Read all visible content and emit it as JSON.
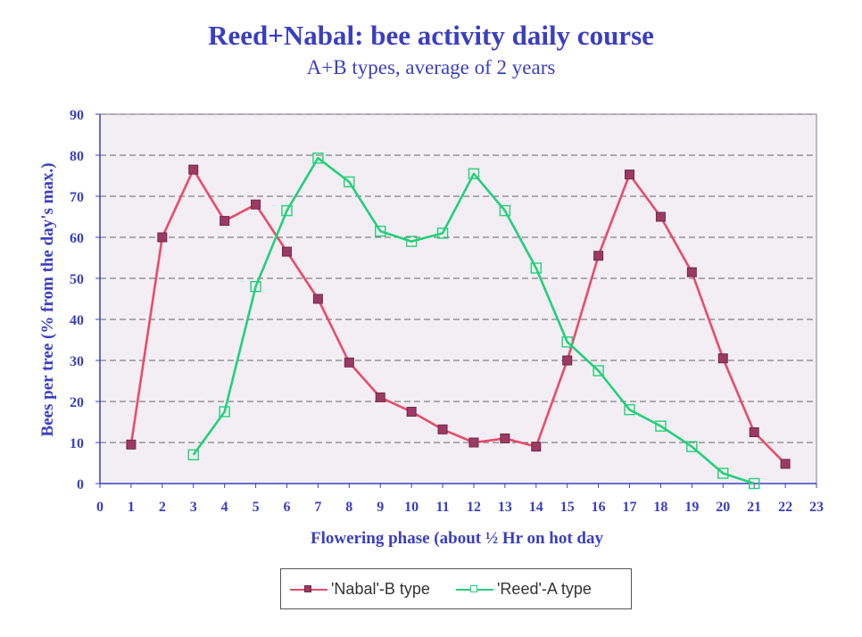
{
  "chart_data": {
    "type": "line",
    "title": "Reed+Nabal: bee activity daily course",
    "subtitle": "A+B types, average of 2 years",
    "xlabel": "Flowering phase (about ½ Hr on hot day",
    "ylabel": "Bees per tree (% from the day's max.)",
    "xlim": [
      0,
      23
    ],
    "ylim": [
      0,
      90
    ],
    "x_ticks": [
      0,
      1,
      2,
      3,
      4,
      5,
      6,
      7,
      8,
      9,
      10,
      11,
      12,
      13,
      14,
      15,
      16,
      17,
      18,
      19,
      20,
      21,
      22,
      23
    ],
    "y_ticks": [
      0,
      10,
      20,
      30,
      40,
      50,
      60,
      70,
      80,
      90
    ],
    "grid": true,
    "legend_position": "bottom",
    "series": [
      {
        "name": "'Nabal'-B type",
        "color": "#e84c6a",
        "marker": "filled-square",
        "marker_color": "#9c3a64",
        "points": [
          [
            1,
            9.5
          ],
          [
            2,
            60
          ],
          [
            3,
            76.5
          ],
          [
            4,
            64
          ],
          [
            5,
            68
          ],
          [
            6,
            56.5
          ],
          [
            7,
            45
          ],
          [
            8,
            29.5
          ],
          [
            9,
            21
          ],
          [
            10,
            17.5
          ],
          [
            11,
            13.2
          ],
          [
            12,
            10
          ],
          [
            13,
            11
          ],
          [
            14,
            9
          ],
          [
            15,
            30
          ],
          [
            16,
            55.5
          ],
          [
            17,
            75.3
          ],
          [
            18,
            65
          ],
          [
            19,
            51.5
          ],
          [
            20,
            30.5
          ],
          [
            21,
            12.5
          ],
          [
            22,
            4.8
          ]
        ]
      },
      {
        "name": "'Reed'-A type",
        "color": "#22d07a",
        "marker": "hollow-square",
        "marker_color": "#22d07a",
        "points": [
          [
            3,
            7
          ],
          [
            4,
            17.5
          ],
          [
            5,
            48
          ],
          [
            6,
            66.5
          ],
          [
            7,
            79.3
          ],
          [
            8,
            73.5
          ],
          [
            9,
            61.5
          ],
          [
            10,
            59
          ],
          [
            11,
            61
          ],
          [
            12,
            75.5
          ],
          [
            13,
            66.5
          ],
          [
            14,
            52.5
          ],
          [
            15,
            34.5
          ],
          [
            16,
            27.5
          ],
          [
            17,
            18
          ],
          [
            18,
            14
          ],
          [
            19,
            9
          ],
          [
            20,
            2.5
          ],
          [
            21,
            0
          ]
        ]
      }
    ]
  }
}
